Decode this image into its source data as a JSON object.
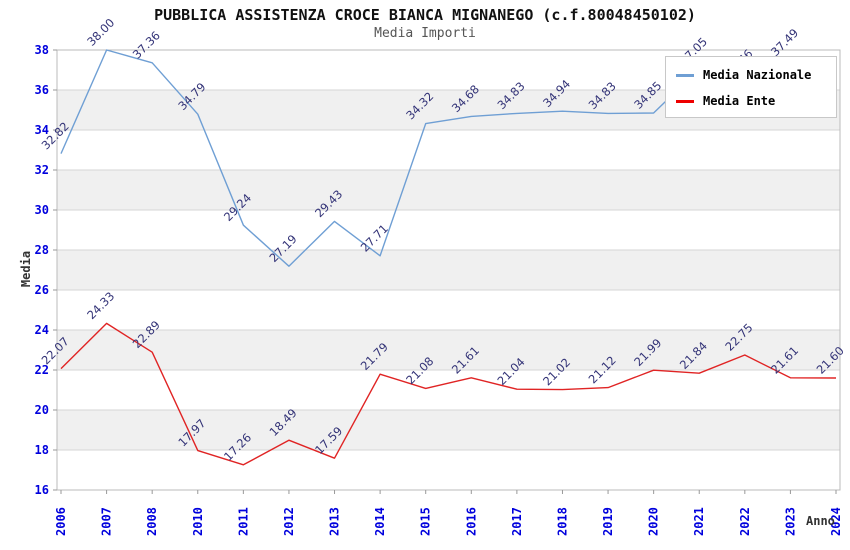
{
  "page": {
    "title": "PUBBLICA ASSISTENZA CROCE BIANCA MIGNANEGO (c.f.80048450102)",
    "subtitle": "Media Importi"
  },
  "axes": {
    "y_title": "Media",
    "x_title": "Anno",
    "y_ticks": [
      38,
      36,
      34,
      32,
      30,
      28,
      26,
      24,
      22,
      20,
      18,
      16
    ]
  },
  "colors": {
    "national_line": "#6f9fd4",
    "entity_line": "#e02424",
    "legend_national_swatch": "#6f9fd4",
    "legend_entity_swatch": "#ee0000",
    "axis_tick_label": "#0000dd",
    "point_label": "#333377",
    "band": "#f0f0f0",
    "gridline": "#d6d6d6",
    "plot_border": "#bbbbbb"
  },
  "chart_data": {
    "type": "line",
    "title": "PUBBLICA ASSISTENZA CROCE BIANCA MIGNANEGO (c.f.80048450102)",
    "subtitle": "Media Importi",
    "xlabel": "Anno",
    "ylabel": "Media",
    "ylim": [
      16,
      38
    ],
    "grid": "horizontal-gridlines-with-alternating-bands",
    "legend_position": "top-right-overlapping-plot",
    "categories": [
      "2006",
      "2007",
      "2008",
      "2010",
      "2011",
      "2012",
      "2013",
      "2014",
      "2015",
      "2016",
      "2017",
      "2018",
      "2019",
      "2020",
      "2021",
      "2022",
      "2023",
      "2024"
    ],
    "series": [
      {
        "name": "Media Nazionale",
        "color": "#6f9fd4",
        "values": [
          32.82,
          38.0,
          37.36,
          34.79,
          29.24,
          27.19,
          29.43,
          27.71,
          34.32,
          34.68,
          34.83,
          34.94,
          34.83,
          34.85,
          37.05,
          36.46,
          37.49,
          36.5
        ],
        "point_labels": [
          "32.82",
          "38.00",
          "37.36",
          "34.79",
          "29.24",
          "27.19",
          "29.43",
          "27.71",
          "34.32",
          "34.68",
          "34.83",
          "34.94",
          "34.83",
          "34.85",
          "37.05",
          "36.46",
          "37.49",
          ""
        ]
      },
      {
        "name": "Media Ente",
        "color": "#e02424",
        "values": [
          22.07,
          24.33,
          22.89,
          17.97,
          17.26,
          18.49,
          17.59,
          21.79,
          21.08,
          21.61,
          21.04,
          21.02,
          21.12,
          21.99,
          21.84,
          22.75,
          21.61,
          21.6
        ],
        "point_labels": [
          "22.07",
          "24.33",
          "22.89",
          "17.97",
          "17.26",
          "18.49",
          "17.59",
          "21.79",
          "21.08",
          "21.61",
          "21.04",
          "21.02",
          "21.12",
          "21.99",
          "21.84",
          "22.75",
          "21.61",
          "21.60"
        ]
      }
    ]
  }
}
